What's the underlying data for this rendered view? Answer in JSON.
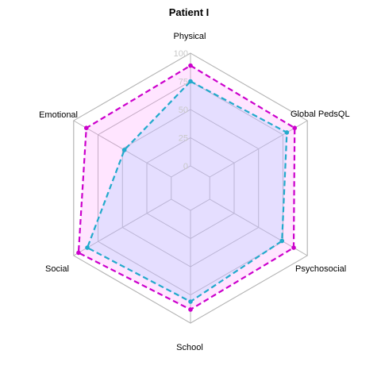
{
  "chart_data": {
    "type": "radar",
    "title": "Patient I",
    "axes": [
      "Physical",
      "Global PedsQL",
      "Psychosocial",
      "School",
      "Social",
      "Emotional"
    ],
    "tick_labels": [
      "0",
      "25",
      "50",
      "75",
      "100"
    ],
    "rlim": [
      0,
      100
    ],
    "grid": true,
    "legend": "none",
    "series": [
      {
        "values": [
          89,
          87,
          86,
          88,
          95,
          87
        ],
        "line_color": "#cc00cc",
        "fill_color": "#ff99ff",
        "line_style": "dashed"
      },
      {
        "values": [
          75,
          79,
          74,
          81,
          86,
          48
        ],
        "line_color": "#22aacc",
        "fill_color": "#99ccff",
        "line_style": "dashed"
      }
    ]
  }
}
